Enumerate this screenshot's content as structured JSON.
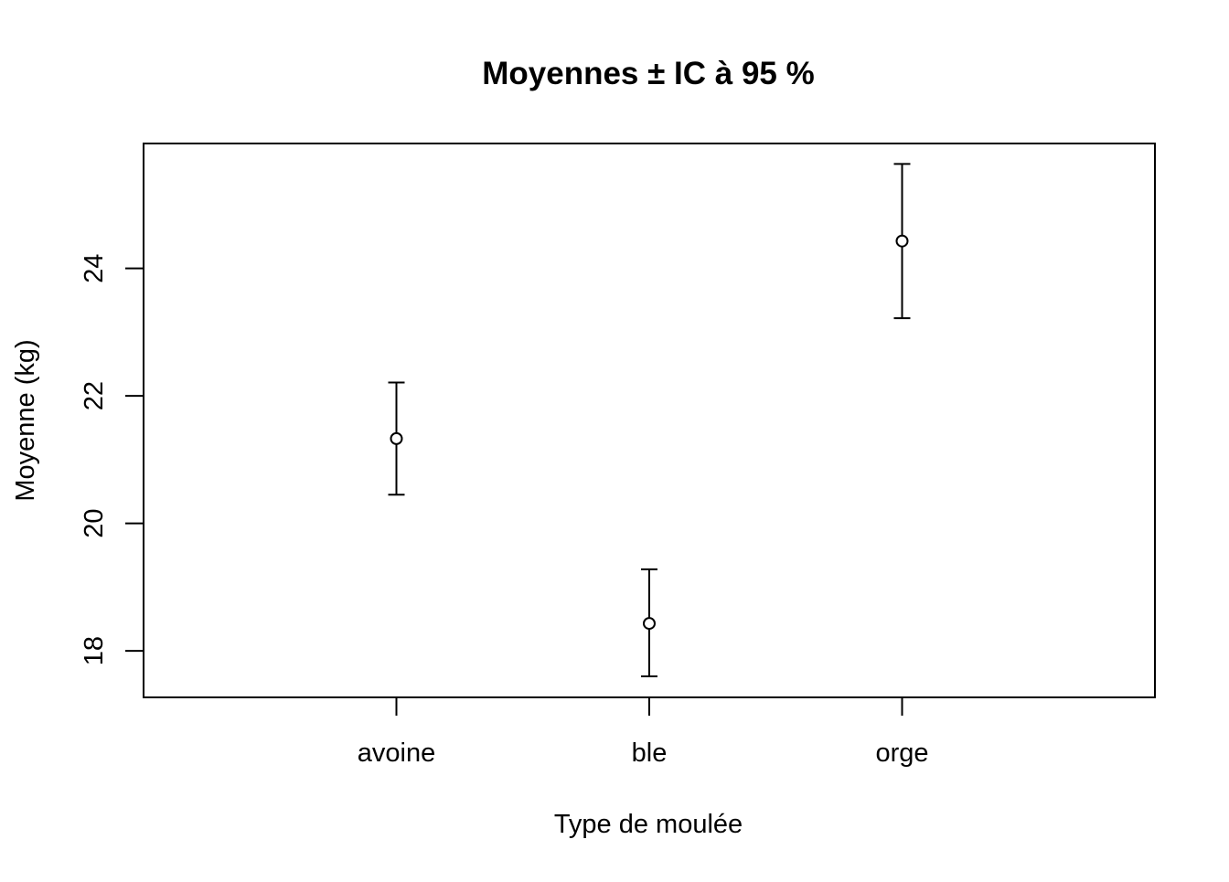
{
  "chart_data": {
    "type": "scatter",
    "title": "Moyennes ± IC à 95 %",
    "xlabel": "Type de moulée",
    "ylabel": "Moyenne (kg)",
    "categories": [
      "avoine",
      "ble",
      "orge"
    ],
    "series": [
      {
        "values": [
          21.33,
          18.43,
          24.43
        ],
        "ci_lower": [
          20.45,
          17.6,
          23.22
        ],
        "ci_upper": [
          22.21,
          19.28,
          25.64
        ]
      }
    ],
    "x_range": [
      0,
      4
    ],
    "ylim": [
      17.27,
      25.96
    ],
    "y_ticks": [
      18,
      20,
      22,
      24
    ],
    "grid": false,
    "marker": "open-circle",
    "error_bars": "95% confidence interval",
    "color": "#000000"
  }
}
